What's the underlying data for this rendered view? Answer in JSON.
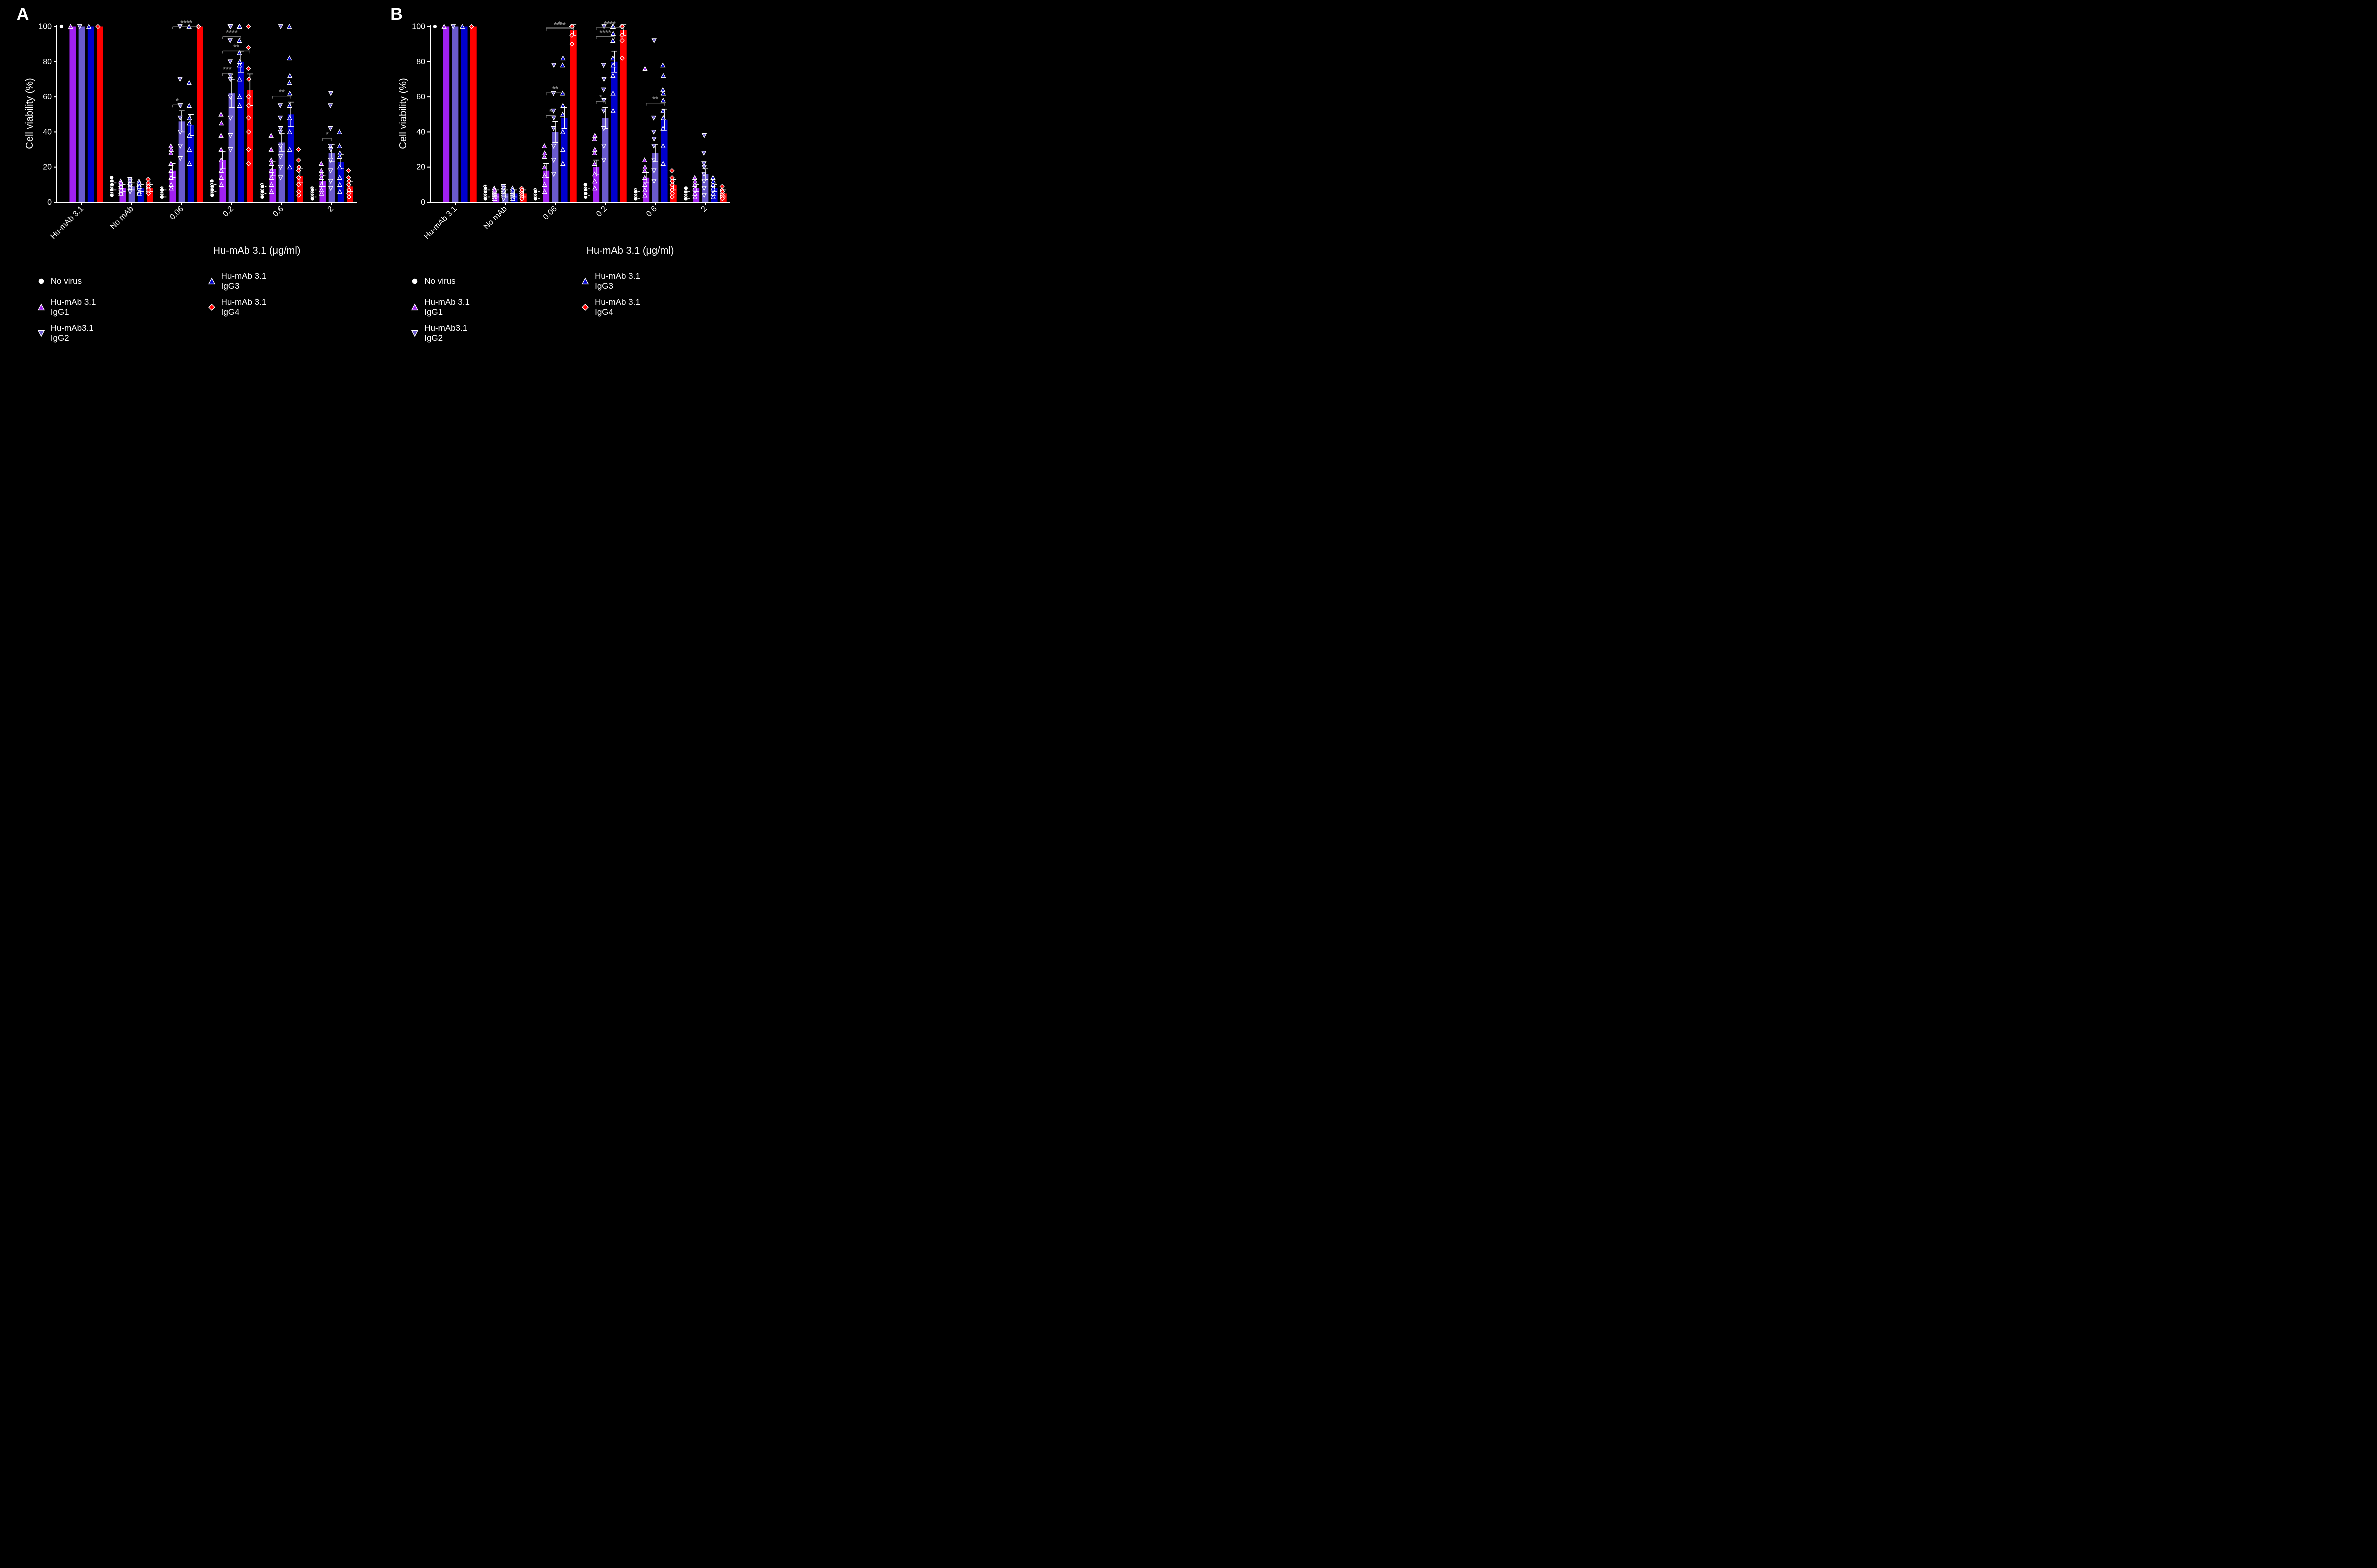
{
  "background_color": "#000000",
  "axis_color": "#ffffff",
  "text_color": "#ffffff",
  "grid_color": "none",
  "significance_text_color": "#808080",
  "significance_line_color": "#808080",
  "error_bar_color": "#ffffff",
  "axis_fontsize": 20,
  "tick_fontsize": 16,
  "legend_fontsize": 17,
  "sig_fontsize": 15,
  "panel_letter_fontsize": 34,
  "conditions": [
    {
      "id": "c0",
      "legend_col": 0,
      "label": "No virus",
      "bar_color": "#000000",
      "marker": "circle",
      "marker_fill": "#ffffff",
      "marker_stroke": "#000000"
    },
    {
      "id": "c1",
      "legend_col": 0,
      "label": "Hu-mAb 3.1 IgG1",
      "bar_color": "#a020f0",
      "marker": "triangle-up",
      "marker_fill": "#a020f0",
      "marker_stroke": "#ffffff"
    },
    {
      "id": "c2",
      "legend_col": 0,
      "label": "Hu-mAb3.1 IgG2",
      "bar_color": "#6a5acd",
      "marker": "triangle-down",
      "marker_fill": "#6a5acd",
      "marker_stroke": "#ffffff"
    },
    {
      "id": "c3",
      "legend_col": 1,
      "label": "Hu-mAb 3.1 IgG3",
      "bar_color": "#0000cd",
      "marker": "triangle-up",
      "marker_fill": "#0000cd",
      "marker_stroke": "#ffffff"
    },
    {
      "id": "c4",
      "legend_col": 1,
      "label": "Hu-mAb 3.1 IgG4",
      "bar_color": "#ff0000",
      "marker": "diamond",
      "marker_fill": "#ff0000",
      "marker_stroke": "#ffffff"
    }
  ],
  "x_group_labels": [
    "Hu-mAb 3.1",
    "No mAb",
    "0.06",
    "0.2",
    "0.6",
    "2"
  ],
  "x_axis_title": "Hu-mAb 3.1 (μg/ml)",
  "panels": {
    "A": {
      "letter": "A",
      "y_label": "Cell viability (%)",
      "ylim": [
        0,
        101
      ],
      "ytick_step": 20,
      "bar_width_rel": 0.7,
      "bars": {
        "Hu-mAb 3.1": {
          "c0": {
            "mean": 100,
            "sem": 0
          },
          "c1": {
            "mean": 100,
            "sem": 0
          },
          "c2": {
            "mean": 100,
            "sem": 0
          },
          "c3": {
            "mean": 100,
            "sem": 0
          },
          "c4": {
            "mean": 100,
            "sem": 0
          }
        },
        "No mAb": {
          "c0": {
            "mean": 9,
            "sem": 2
          },
          "c1": {
            "mean": 8,
            "sem": 2
          },
          "c2": {
            "mean": 9,
            "sem": 2
          },
          "c3": {
            "mean": 8,
            "sem": 2
          },
          "c4": {
            "mean": 8,
            "sem": 2
          }
        },
        "0.06": {
          "c0": {
            "mean": 5,
            "sem": 2
          },
          "c1": {
            "mean": 18,
            "sem": 4
          },
          "c2": {
            "mean": 46,
            "sem": 6
          },
          "c3": {
            "mean": 44,
            "sem": 6
          },
          "c4": {
            "mean": 100,
            "sem": 0
          }
        },
        "0.2": {
          "c0": {
            "mean": 8,
            "sem": 2
          },
          "c1": {
            "mean": 24,
            "sem": 5
          },
          "c2": {
            "mean": 62,
            "sem": 8
          },
          "c3": {
            "mean": 80,
            "sem": 6
          },
          "c4": {
            "mean": 64,
            "sem": 9
          }
        },
        "0.6": {
          "c0": {
            "mean": 7,
            "sem": 2
          },
          "c1": {
            "mean": 19,
            "sem": 4
          },
          "c2": {
            "mean": 34,
            "sem": 5
          },
          "c3": {
            "mean": 50,
            "sem": 7
          },
          "c4": {
            "mean": 15,
            "sem": 4
          }
        },
        "2": {
          "c0": {
            "mean": 5,
            "sem": 2
          },
          "c1": {
            "mean": 12,
            "sem": 3
          },
          "c2": {
            "mean": 28,
            "sem": 5
          },
          "c3": {
            "mean": 23,
            "sem": 4
          },
          "c4": {
            "mean": 9,
            "sem": 3
          }
        }
      },
      "points": {
        "Hu-mAb 3.1": {
          "c0": [
            100
          ],
          "c1": [
            100
          ],
          "c2": [
            100
          ],
          "c3": [
            100
          ],
          "c4": [
            100
          ]
        },
        "No mAb": {
          "c0": [
            14,
            11,
            9,
            7,
            5,
            4,
            12,
            10
          ],
          "c1": [
            12,
            10,
            8,
            6,
            5,
            11,
            9,
            7
          ],
          "c2": [
            13,
            11,
            9,
            7,
            6,
            12,
            8,
            10
          ],
          "c3": [
            12,
            10,
            8,
            6,
            5,
            11,
            9
          ],
          "c4": [
            13,
            10,
            8,
            6,
            5,
            11,
            9,
            7
          ]
        },
        "0.06": {
          "c0": [
            8,
            6,
            5,
            4,
            3,
            7
          ],
          "c1": [
            32,
            28,
            22,
            18,
            14,
            10,
            8,
            30
          ],
          "c2": [
            100,
            70,
            55,
            48,
            40,
            32,
            25,
            55
          ],
          "c3": [
            100,
            68,
            55,
            45,
            38,
            30,
            22,
            48
          ],
          "c4": [
            100,
            100,
            100,
            100,
            100,
            100,
            100
          ]
        },
        "0.2": {
          "c0": [
            12,
            10,
            8,
            6,
            5,
            4,
            9,
            7
          ],
          "c1": [
            50,
            38,
            30,
            24,
            18,
            14,
            10,
            45
          ],
          "c2": [
            100,
            92,
            80,
            70,
            60,
            48,
            38,
            30,
            72,
            100
          ],
          "c3": [
            100,
            100,
            92,
            85,
            78,
            70,
            60,
            55,
            80,
            100
          ],
          "c4": [
            100,
            88,
            76,
            60,
            48,
            40,
            30,
            22,
            55,
            70
          ]
        },
        "0.6": {
          "c0": [
            10,
            8,
            7,
            5,
            4,
            3,
            6,
            9
          ],
          "c1": [
            38,
            30,
            24,
            18,
            14,
            10,
            6,
            22
          ],
          "c2": [
            55,
            48,
            40,
            32,
            26,
            20,
            14,
            42,
            100
          ],
          "c3": [
            100,
            82,
            68,
            55,
            48,
            40,
            30,
            20,
            62,
            72
          ],
          "c4": [
            30,
            24,
            18,
            14,
            10,
            6,
            4,
            20
          ]
        },
        "2": {
          "c0": [
            8,
            6,
            5,
            4,
            3,
            2,
            7
          ],
          "c1": [
            22,
            18,
            14,
            10,
            7,
            5,
            16
          ],
          "c2": [
            55,
            42,
            32,
            24,
            18,
            12,
            8,
            30,
            62
          ],
          "c3": [
            40,
            32,
            26,
            20,
            14,
            10,
            6,
            28
          ],
          "c4": [
            18,
            14,
            10,
            7,
            5,
            3,
            12
          ]
        }
      },
      "significance": [
        {
          "group": "0.06",
          "from": "c1",
          "to": "c2",
          "level": 52,
          "label": "*"
        },
        {
          "group": "0.06",
          "from": "c1",
          "to": "c4",
          "level": 58,
          "label": "****"
        },
        {
          "group": "0.2",
          "from": "c1",
          "to": "c2",
          "level": 70,
          "label": "***"
        },
        {
          "group": "0.2",
          "from": "c1",
          "to": "c3",
          "level": 76,
          "label": "****"
        },
        {
          "group": "0.2",
          "from": "c1",
          "to": "c4",
          "level": 82,
          "label": "**"
        },
        {
          "group": "0.6",
          "from": "c1",
          "to": "c3",
          "level": 56,
          "label": "**"
        },
        {
          "group": "2",
          "from": "c1",
          "to": "c2",
          "level": 34,
          "label": "*"
        }
      ]
    },
    "B": {
      "letter": "B",
      "y_label": "Cell viability (%)",
      "ylim": [
        0,
        101
      ],
      "ytick_step": 20,
      "bar_width_rel": 0.7,
      "bars": {
        "Hu-mAb 3.1": {
          "c0": {
            "mean": 100,
            "sem": 0
          },
          "c1": {
            "mean": 100,
            "sem": 0
          },
          "c2": {
            "mean": 100,
            "sem": 0
          },
          "c3": {
            "mean": 100,
            "sem": 0
          },
          "c4": {
            "mean": 100,
            "sem": 0
          }
        },
        "No mAb": {
          "c0": {
            "mean": 5,
            "sem": 2
          },
          "c1": {
            "mean": 5,
            "sem": 2
          },
          "c2": {
            "mean": 5,
            "sem": 2
          },
          "c3": {
            "mean": 5,
            "sem": 2
          },
          "c4": {
            "mean": 5,
            "sem": 2
          }
        },
        "0.06": {
          "c0": {
            "mean": 4,
            "sem": 2
          },
          "c1": {
            "mean": 18,
            "sem": 4
          },
          "c2": {
            "mean": 40,
            "sem": 6
          },
          "c3": {
            "mean": 48,
            "sem": 6
          },
          "c4": {
            "mean": 98,
            "sem": 3
          }
        },
        "0.2": {
          "c0": {
            "mean": 6,
            "sem": 2
          },
          "c1": {
            "mean": 20,
            "sem": 4
          },
          "c2": {
            "mean": 48,
            "sem": 6
          },
          "c3": {
            "mean": 80,
            "sem": 6
          },
          "c4": {
            "mean": 98,
            "sem": 3
          }
        },
        "0.6": {
          "c0": {
            "mean": 4,
            "sem": 2
          },
          "c1": {
            "mean": 14,
            "sem": 3
          },
          "c2": {
            "mean": 28,
            "sem": 5
          },
          "c3": {
            "mean": 47,
            "sem": 6
          },
          "c4": {
            "mean": 10,
            "sem": 3
          }
        },
        "2": {
          "c0": {
            "mean": 4,
            "sem": 2
          },
          "c1": {
            "mean": 8,
            "sem": 2
          },
          "c2": {
            "mean": 16,
            "sem": 3
          },
          "c3": {
            "mean": 8,
            "sem": 2
          },
          "c4": {
            "mean": 5,
            "sem": 2
          }
        }
      },
      "points": {
        "Hu-mAb 3.1": {
          "c0": [
            100
          ],
          "c1": [
            100
          ],
          "c2": [
            100
          ],
          "c3": [
            100
          ],
          "c4": [
            100
          ]
        },
        "No mAb": {
          "c0": [
            9,
            7,
            5,
            4,
            3,
            2,
            6,
            8
          ],
          "c1": [
            8,
            6,
            5,
            4,
            3,
            2,
            7
          ],
          "c2": [
            9,
            7,
            5,
            4,
            3,
            2,
            6,
            8
          ],
          "c3": [
            8,
            6,
            5,
            4,
            3,
            2,
            7
          ],
          "c4": [
            8,
            6,
            5,
            4,
            3,
            2,
            7
          ]
        },
        "0.06": {
          "c0": [
            7,
            5,
            4,
            3,
            2,
            6
          ],
          "c1": [
            32,
            26,
            20,
            15,
            10,
            6,
            28
          ],
          "c2": [
            62,
            52,
            42,
            32,
            24,
            16,
            48,
            78
          ],
          "c3": [
            78,
            62,
            50,
            40,
            30,
            22,
            55,
            82
          ],
          "c4": [
            100,
            100,
            100,
            95,
            90,
            100,
            100
          ]
        },
        "0.2": {
          "c0": [
            10,
            8,
            6,
            4,
            3,
            7,
            5
          ],
          "c1": [
            36,
            28,
            22,
            16,
            12,
            8,
            30,
            38
          ],
          "c2": [
            78,
            64,
            52,
            42,
            32,
            24,
            58,
            70,
            100
          ],
          "c3": [
            100,
            100,
            92,
            82,
            72,
            62,
            52,
            78,
            96,
            100
          ],
          "c4": [
            100,
            100,
            100,
            95,
            92,
            100,
            100,
            82
          ]
        },
        "0.6": {
          "c0": [
            7,
            5,
            4,
            3,
            2,
            6
          ],
          "c1": [
            24,
            18,
            14,
            10,
            7,
            4,
            20,
            76
          ],
          "c2": [
            48,
            40,
            32,
            24,
            18,
            12,
            36,
            92
          ],
          "c3": [
            78,
            64,
            52,
            42,
            32,
            22,
            58,
            62,
            48,
            72
          ],
          "c4": [
            18,
            14,
            10,
            7,
            5,
            3,
            12
          ]
        },
        "2": {
          "c0": [
            7,
            5,
            4,
            3,
            2,
            6,
            8
          ],
          "c1": [
            14,
            10,
            8,
            5,
            3,
            12
          ],
          "c2": [
            28,
            22,
            16,
            12,
            8,
            4,
            20,
            38
          ],
          "c3": [
            14,
            10,
            8,
            5,
            3,
            12
          ],
          "c4": [
            9,
            7,
            5,
            4,
            3,
            2,
            6
          ]
        }
      },
      "significance": [
        {
          "group": "0.06",
          "from": "c1",
          "to": "c2",
          "level": 46,
          "label": "*"
        },
        {
          "group": "0.06",
          "from": "c1",
          "to": "c3",
          "level": 52,
          "label": "**"
        },
        {
          "group": "0.06",
          "from": "c1",
          "to": "c4",
          "level": 58,
          "label": "*"
        },
        {
          "group": "0.06",
          "from": "c1",
          "to": "c4",
          "level": 64,
          "label": "****"
        },
        {
          "group": "0.2",
          "from": "c1",
          "to": "c2",
          "level": 54,
          "label": "*"
        },
        {
          "group": "0.2",
          "from": "c1",
          "to": "c3",
          "level": 60,
          "label": "****"
        },
        {
          "group": "0.2",
          "from": "c1",
          "to": "c4",
          "level": 66,
          "label": "****"
        },
        {
          "group": "0.6",
          "from": "c1",
          "to": "c3",
          "level": 53,
          "label": "**"
        }
      ]
    }
  }
}
